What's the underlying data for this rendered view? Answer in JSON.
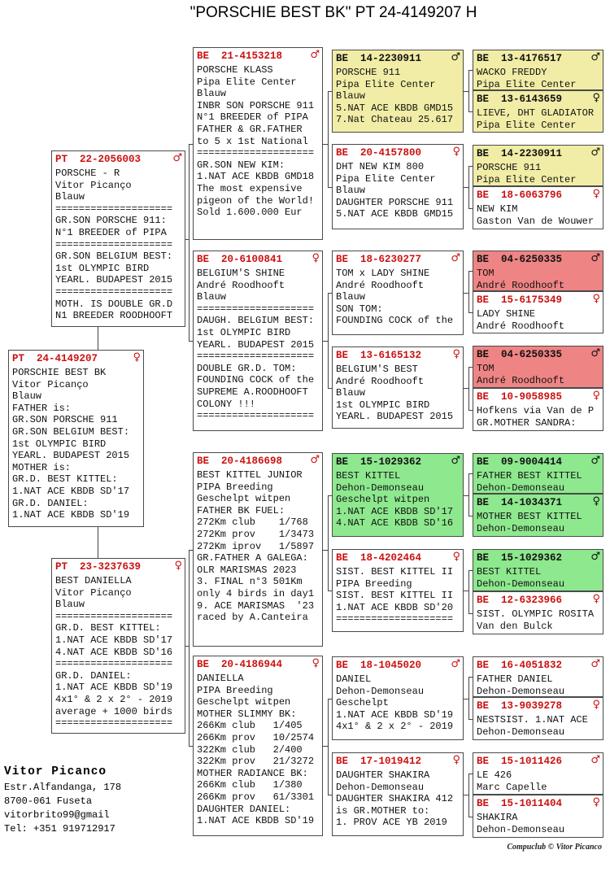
{
  "title": "\"PORSCHIE BEST BK\"  PT  24-4149207 H",
  "footer": "Compuclub © Vitor Picanco",
  "contact": {
    "name": "Vitor Picanco",
    "lines": [
      "Estr.Alfandanga, 178",
      "8700-061 Fuseta",
      "vitorbrito99@gmail",
      "Tel: +351 919712917"
    ]
  },
  "symbols": {
    "m": "♂",
    "f": "♀"
  },
  "colors": {
    "ring_red": "#cc1111",
    "yellow": "#f1eda6",
    "green": "#8ee88e",
    "salmon": "#ef8484",
    "line": "#444444"
  },
  "boxes": [
    {
      "id": "pt24",
      "country": "PT",
      "ring": "24-4149207",
      "sex": "f",
      "color": "white",
      "lines": [
        "PORSCHIE BEST BK",
        "Vitor Picanço",
        "Blauw",
        "FATHER is:",
        "GR.SON PORSCHE 911",
        "GR.SON BELGIUM BEST:",
        "1st OLYMPIC BIRD",
        "YEARL. BUDAPEST 2015",
        "MOTHER is:",
        "GR.D. BEST KITTEL:",
        "1.NAT ACE KBDB SD'17",
        "GR.D. DANIEL:",
        "1.NAT ACE KBDB SD'19"
      ]
    },
    {
      "id": "pt22",
      "country": "PT",
      "ring": "22-2056003",
      "sex": "m",
      "color": "white",
      "lines": [
        "PORSCHE - R",
        "Vitor Picanço",
        "Blauw",
        "====================",
        "GR.SON PORSCHE 911:",
        "N°1 BREEDER of PIPA",
        "====================",
        "GR.SON BELGIUM BEST:",
        "1st OLYMPIC BIRD",
        "YEARL. BUDAPEST 2015",
        "====================",
        "MOTH. IS DOUBLE GR.D",
        "N1 BREEDER ROODHOOFT"
      ]
    },
    {
      "id": "pt23",
      "country": "PT",
      "ring": "23-3237639",
      "sex": "f",
      "color": "white",
      "lines": [
        "BEST DANIELLA",
        "Vitor Picanço",
        "Blauw",
        "====================",
        "GR.D. BEST KITTEL:",
        "1.NAT ACE KBDB SD'17",
        "4.NAT ACE KBDB SD'16",
        "====================",
        "GR.D. DANIEL:",
        "1.NAT ACE KBDB SD'19",
        "4x1° & 2 x 2° - 2019",
        "average + 1000 birds",
        "===================="
      ]
    },
    {
      "id": "be21",
      "country": "BE",
      "ring": "21-4153218",
      "sex": "m",
      "color": "white",
      "lines": [
        "PORSCHE KLASS",
        "Pipa Elite Center",
        "Blauw",
        "INBR SON PORSCHE 911",
        "N°1 BREEDER of PIPA",
        "FATHER & GR.FATHER",
        "to 5 x 1st National",
        "====================",
        "GR.SON NEW KIM:",
        "1.NAT ACE KBDB GMD18",
        "The most expensive",
        "pigeon of the World!",
        "Sold 1.600.000 Eur"
      ]
    },
    {
      "id": "be2061",
      "country": "BE",
      "ring": "20-6100841",
      "sex": "f",
      "color": "white",
      "lines": [
        "BELGIUM'S SHINE",
        "André Roodhooft",
        "Blauw",
        "====================",
        "DAUGH. BELGIUM BEST:",
        "1st OLYMPIC BIRD",
        "YEARL. BUDAPEST 2015",
        "====================",
        "DOUBLE GR.D. TOM:",
        "FOUNDING COCK of the",
        "SUPREME A.ROODHOOFT",
        "COLONY !!!",
        "===================="
      ]
    },
    {
      "id": "be698",
      "country": "BE",
      "ring": "20-4186698",
      "sex": "m",
      "color": "white",
      "lines": [
        "BEST KITTEL JUNIOR",
        "PIPA Breeding",
        "Geschelpt witpen",
        "FATHER BK FUEL:",
        "272Km club    1/768",
        "272Km prov    1/3473",
        "272Km iprov   1/5897",
        "GR.FATHER A GALEGA:",
        "OLR MARISMAS 2023",
        "3. FINAL n°3 501Km",
        "only 4 birds in day1",
        "9. ACE MARISMAS  '23",
        "raced by A.Canteira"
      ]
    },
    {
      "id": "be944",
      "country": "BE",
      "ring": "20-4186944",
      "sex": "f",
      "color": "white",
      "lines": [
        "DANIELLA",
        "PIPA Breeding",
        "Geschelpt witpen",
        "MOTHER SLIMMY BK:",
        "266Km club   1/405",
        "266Km prov   10/2574",
        "322Km club   2/400",
        "322Km prov   21/3272",
        "MOTHER RADIANCE BK:",
        "266Km club   1/380",
        "266Km prov   61/3301",
        "DAUGHTER DANIEL:",
        "1.NAT ACE KBDB SD'19"
      ]
    },
    {
      "id": "c3a1",
      "country": "BE",
      "ring": "14-2230911",
      "sex": "m",
      "color": "yellow",
      "lines": [
        "PORSCHE 911",
        "Pipa Elite Center",
        "Blauw",
        "5.NAT ACE KBDB GMD15",
        "7.Nat Chateau 25.617"
      ]
    },
    {
      "id": "c3a2",
      "country": "BE",
      "ring": "20-4157800",
      "sex": "f",
      "color": "white",
      "lines": [
        "DHT NEW KIM 800",
        "Pipa Elite Center",
        "Blauw",
        "DAUGHTER PORSCHE 911",
        "5.NAT ACE KBDB GMD15"
      ]
    },
    {
      "id": "c3b1",
      "country": "BE",
      "ring": "18-6230277",
      "sex": "m",
      "color": "white",
      "lines": [
        "TOM x LADY SHINE",
        "André Roodhooft",
        "Blauw",
        "SON TOM:",
        "FOUNDING COCK of the"
      ]
    },
    {
      "id": "c3b2",
      "country": "BE",
      "ring": "13-6165132",
      "sex": "f",
      "color": "white",
      "lines": [
        "BELGIUM'S BEST",
        "André Roodhooft",
        "Blauw",
        "1st OLYMPIC BIRD",
        "YEARL. BUDAPEST 2015"
      ]
    },
    {
      "id": "c3c1",
      "country": "BE",
      "ring": "15-1029362",
      "sex": "m",
      "color": "green",
      "lines": [
        "BEST KITTEL",
        "Dehon-Demonseau",
        "Geschelpt witpen",
        "1.NAT ACE KBDB SD'17",
        "4.NAT ACE KBDB SD'16"
      ]
    },
    {
      "id": "c3c2",
      "country": "BE",
      "ring": "18-4202464",
      "sex": "f",
      "color": "white",
      "lines": [
        "SIST. BEST KITTEL II",
        "PIPA Breeding",
        "SIST. BEST KITTEL II",
        "1.NAT ACE KBDB SD'20",
        "===================="
      ]
    },
    {
      "id": "c3d1",
      "country": "BE",
      "ring": "18-1045020",
      "sex": "m",
      "color": "white",
      "lines": [
        "DANIEL",
        "Dehon-Demonseau",
        "Geschelpt",
        "1.NAT ACE KBDB SD'19",
        "4x1° & 2 x 2° - 2019"
      ]
    },
    {
      "id": "c3d2",
      "country": "BE",
      "ring": "17-1019412",
      "sex": "f",
      "color": "white",
      "lines": [
        "DAUGHTER SHAKIRA",
        "Dehon-Demonseau",
        "DAUGHTER SHAKIRA 412",
        "is GR.MOTHER to:",
        "1. PROV ACE YB 2019"
      ]
    },
    {
      "id": "g1a",
      "country": "BE",
      "ring": "13-4176517",
      "sex": "m",
      "color": "yellow",
      "lines": [
        "WACKO FREDDY",
        "Pipa Elite Center"
      ]
    },
    {
      "id": "g1b",
      "country": "BE",
      "ring": "13-6143659",
      "sex": "f",
      "color": "yellow",
      "lines": [
        "LIEVE, DHT GLADIATOR",
        "Pipa Elite Center"
      ]
    },
    {
      "id": "g2a",
      "country": "BE",
      "ring": "14-2230911",
      "sex": "m",
      "color": "yellow",
      "lines": [
        "PORSCHE 911",
        "Pipa Elite Center"
      ]
    },
    {
      "id": "g2b",
      "country": "BE",
      "ring": "18-6063796",
      "sex": "f",
      "color": "white",
      "lines": [
        "NEW KIM",
        "Gaston Van de Wouwer"
      ]
    },
    {
      "id": "g3a",
      "country": "BE",
      "ring": "04-6250335",
      "sex": "m",
      "color": "salmon",
      "lines": [
        "TOM",
        "André Roodhooft"
      ]
    },
    {
      "id": "g3b",
      "country": "BE",
      "ring": "15-6175349",
      "sex": "f",
      "color": "white",
      "lines": [
        "LADY SHINE",
        "André Roodhooft"
      ]
    },
    {
      "id": "g4a",
      "country": "BE",
      "ring": "04-6250335",
      "sex": "m",
      "color": "salmon",
      "lines": [
        "TOM",
        "André Roodhooft"
      ]
    },
    {
      "id": "g4b",
      "country": "BE",
      "ring": "10-9058985",
      "sex": "f",
      "color": "white",
      "lines": [
        "Hofkens via Van de P",
        "GR.MOTHER SANDRA:"
      ]
    },
    {
      "id": "g5a",
      "country": "BE",
      "ring": "09-9004414",
      "sex": "m",
      "color": "green",
      "lines": [
        "FATHER BEST KITTEL",
        "Dehon-Demonseau"
      ]
    },
    {
      "id": "g5b",
      "country": "BE",
      "ring": "14-1034371",
      "sex": "f",
      "color": "green",
      "lines": [
        "MOTHER BEST KITTEL",
        "Dehon-Demonseau"
      ]
    },
    {
      "id": "g6a",
      "country": "BE",
      "ring": "15-1029362",
      "sex": "m",
      "color": "green",
      "lines": [
        "BEST KITTEL",
        "Dehon-Demonseau"
      ]
    },
    {
      "id": "g6b",
      "country": "BE",
      "ring": "12-6323966",
      "sex": "f",
      "color": "white",
      "lines": [
        "SIST. OLYMPIC ROSITA",
        "Van den Bulck"
      ]
    },
    {
      "id": "g7a",
      "country": "BE",
      "ring": "16-4051832",
      "sex": "m",
      "color": "white",
      "lines": [
        "FATHER DANIEL",
        "Dehon-Demonseau"
      ]
    },
    {
      "id": "g7b",
      "country": "BE",
      "ring": "13-9039278",
      "sex": "f",
      "color": "white",
      "lines": [
        "NESTSIST. 1.NAT ACE",
        "Dehon-Demonseau"
      ]
    },
    {
      "id": "g8a",
      "country": "BE",
      "ring": "15-1011426",
      "sex": "m",
      "color": "white",
      "lines": [
        "LE 426",
        "Marc Capelle"
      ]
    },
    {
      "id": "g8b",
      "country": "BE",
      "ring": "15-1011404",
      "sex": "f",
      "color": "white",
      "lines": [
        "SHAKIRA",
        "Dehon-Demonseau"
      ]
    }
  ]
}
